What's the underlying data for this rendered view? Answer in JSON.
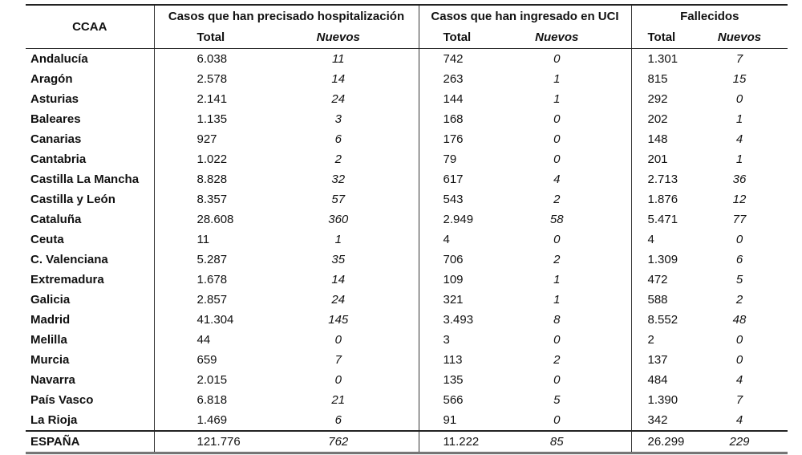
{
  "header": {
    "ccaa": "CCAA",
    "groups": [
      "Casos que han precisado hospitalización",
      "Casos que han ingresado en UCI",
      "Fallecidos"
    ],
    "total_label": "Total",
    "new_label": "Nuevos"
  },
  "rows": [
    {
      "region": "Andalucía",
      "hosp_total": "6.038",
      "hosp_new": "11",
      "uci_total": "742",
      "uci_new": "0",
      "fall_total": "1.301",
      "fall_new": "7"
    },
    {
      "region": "Aragón",
      "hosp_total": "2.578",
      "hosp_new": "14",
      "uci_total": "263",
      "uci_new": "1",
      "fall_total": "815",
      "fall_new": "15"
    },
    {
      "region": "Asturias",
      "hosp_total": "2.141",
      "hosp_new": "24",
      "uci_total": "144",
      "uci_new": "1",
      "fall_total": "292",
      "fall_new": "0"
    },
    {
      "region": "Baleares",
      "hosp_total": "1.135",
      "hosp_new": "3",
      "uci_total": "168",
      "uci_new": "0",
      "fall_total": "202",
      "fall_new": "1"
    },
    {
      "region": "Canarias",
      "hosp_total": "927",
      "hosp_new": "6",
      "uci_total": "176",
      "uci_new": "0",
      "fall_total": "148",
      "fall_new": "4"
    },
    {
      "region": "Cantabria",
      "hosp_total": "1.022",
      "hosp_new": "2",
      "uci_total": "79",
      "uci_new": "0",
      "fall_total": "201",
      "fall_new": "1"
    },
    {
      "region": "Castilla La Mancha",
      "hosp_total": "8.828",
      "hosp_new": "32",
      "uci_total": "617",
      "uci_new": "4",
      "fall_total": "2.713",
      "fall_new": "36"
    },
    {
      "region": "Castilla y León",
      "hosp_total": "8.357",
      "hosp_new": "57",
      "uci_total": "543",
      "uci_new": "2",
      "fall_total": "1.876",
      "fall_new": "12"
    },
    {
      "region": "Cataluña",
      "hosp_total": "28.608",
      "hosp_new": "360",
      "uci_total": "2.949",
      "uci_new": "58",
      "fall_total": "5.471",
      "fall_new": "77"
    },
    {
      "region": "Ceuta",
      "hosp_total": "11",
      "hosp_new": "1",
      "uci_total": "4",
      "uci_new": "0",
      "fall_total": "4",
      "fall_new": "0"
    },
    {
      "region": "C. Valenciana",
      "hosp_total": "5.287",
      "hosp_new": "35",
      "uci_total": "706",
      "uci_new": "2",
      "fall_total": "1.309",
      "fall_new": "6"
    },
    {
      "region": "Extremadura",
      "hosp_total": "1.678",
      "hosp_new": "14",
      "uci_total": "109",
      "uci_new": "1",
      "fall_total": "472",
      "fall_new": "5"
    },
    {
      "region": "Galicia",
      "hosp_total": "2.857",
      "hosp_new": "24",
      "uci_total": "321",
      "uci_new": "1",
      "fall_total": "588",
      "fall_new": "2"
    },
    {
      "region": "Madrid",
      "hosp_total": "41.304",
      "hosp_new": "145",
      "uci_total": "3.493",
      "uci_new": "8",
      "fall_total": "8.552",
      "fall_new": "48"
    },
    {
      "region": "Melilla",
      "hosp_total": "44",
      "hosp_new": "0",
      "uci_total": "3",
      "uci_new": "0",
      "fall_total": "2",
      "fall_new": "0"
    },
    {
      "region": "Murcia",
      "hosp_total": "659",
      "hosp_new": "7",
      "uci_total": "113",
      "uci_new": "2",
      "fall_total": "137",
      "fall_new": "0"
    },
    {
      "region": "Navarra",
      "hosp_total": "2.015",
      "hosp_new": "0",
      "uci_total": "135",
      "uci_new": "0",
      "fall_total": "484",
      "fall_new": "4"
    },
    {
      "region": "País Vasco",
      "hosp_total": "6.818",
      "hosp_new": "21",
      "uci_total": "566",
      "uci_new": "5",
      "fall_total": "1.390",
      "fall_new": "7"
    },
    {
      "region": "La Rioja",
      "hosp_total": "1.469",
      "hosp_new": "6",
      "uci_total": "91",
      "uci_new": "0",
      "fall_total": "342",
      "fall_new": "4"
    }
  ],
  "total": {
    "region": "ESPAÑA",
    "hosp_total": "121.776",
    "hosp_new": "762",
    "uci_total": "11.222",
    "uci_new": "85",
    "fall_total": "26.299",
    "fall_new": "229"
  }
}
